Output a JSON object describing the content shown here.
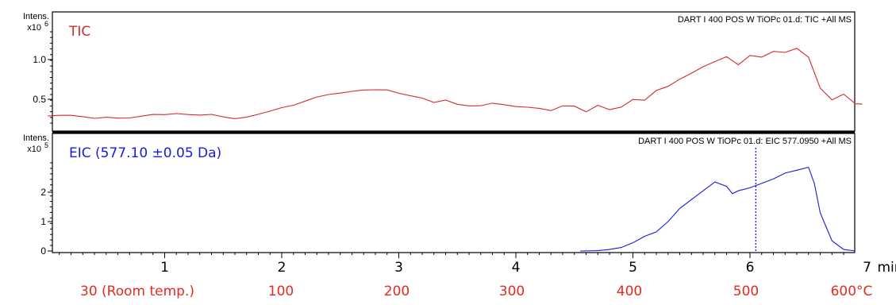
{
  "chart_data": [
    {
      "type": "line",
      "panel": "top",
      "label": "TIC",
      "header": "DART I 400 POS W TiOPc 01.d: TIC +All MS",
      "y_title": "Intens.",
      "y_unit": "x10",
      "y_exp": "6",
      "yticks": [
        0.5,
        1.0
      ],
      "ylim": [
        0.2,
        1.35
      ],
      "xlim": [
        0,
        6.96
      ],
      "color": "#d42a2a",
      "series": [
        {
          "color": "#d42a2a",
          "x": [
            0.0,
            0.1,
            0.2,
            0.3,
            0.4,
            0.5,
            0.6,
            0.7,
            0.8,
            0.9,
            1.0,
            1.1,
            1.2,
            1.3,
            1.4,
            1.5,
            1.6,
            1.7,
            1.8,
            1.9,
            2.0,
            2.1,
            2.2,
            2.3,
            2.4,
            2.5,
            2.6,
            2.7,
            2.8,
            2.9,
            3.0,
            3.1,
            3.2,
            3.3,
            3.4,
            3.5,
            3.6,
            3.7,
            3.8,
            3.9,
            4.0,
            4.1,
            4.2,
            4.3,
            4.4,
            4.5,
            4.6,
            4.7,
            4.8,
            4.9,
            5.0,
            5.1,
            5.2,
            5.3,
            5.4,
            5.5,
            5.6,
            5.7,
            5.8,
            5.9,
            6.0,
            6.1,
            6.2,
            6.3,
            6.4,
            6.5,
            6.6,
            6.7,
            6.8,
            6.9,
            6.96
          ],
          "y": [
            0.29,
            0.31,
            0.32,
            0.31,
            0.29,
            0.3,
            0.28,
            0.27,
            0.28,
            0.29,
            0.28,
            0.29,
            0.28,
            0.28,
            0.3,
            0.28,
            0.27,
            0.3,
            0.34,
            0.38,
            0.42,
            0.44,
            0.48,
            0.52,
            0.54,
            0.55,
            0.57,
            0.59,
            0.6,
            0.61,
            0.58,
            0.56,
            0.54,
            0.49,
            0.52,
            0.46,
            0.43,
            0.42,
            0.44,
            0.41,
            0.38,
            0.37,
            0.36,
            0.34,
            0.41,
            0.42,
            0.36,
            0.45,
            0.4,
            0.43,
            0.52,
            0.5,
            0.61,
            0.65,
            0.73,
            0.8,
            0.88,
            0.95,
            1.02,
            0.93,
            1.06,
            1.05,
            1.13,
            1.12,
            1.17,
            1.05,
            0.65,
            0.49,
            0.55,
            0.42,
            0.41
          ]
        }
      ]
    },
    {
      "type": "line",
      "panel": "bottom",
      "label": "EIC (577.10 ±0.05 Da)",
      "header": "DART I 400 POS W TiOPc 01.d: EIC 577.0950 +All MS",
      "y_title": "Intens.",
      "y_unit": "x10",
      "y_exp": "5",
      "yticks": [
        0,
        1,
        2
      ],
      "ylim": [
        0,
        3.0
      ],
      "xlim": [
        0,
        6.96
      ],
      "color": "#1a1adf",
      "marker_x": 6.05,
      "series": [
        {
          "color": "#1a1adf",
          "x": [
            4.55,
            4.7,
            4.8,
            4.9,
            5.0,
            5.1,
            5.2,
            5.3,
            5.4,
            5.5,
            5.6,
            5.7,
            5.8,
            5.85,
            5.9,
            6.0,
            6.1,
            6.2,
            6.3,
            6.4,
            6.5,
            6.55,
            6.6,
            6.7,
            6.8,
            6.9
          ],
          "y": [
            0.0,
            0.01,
            0.05,
            0.12,
            0.28,
            0.5,
            0.65,
            1.0,
            1.45,
            1.75,
            2.05,
            2.35,
            2.2,
            1.95,
            2.05,
            2.15,
            2.3,
            2.45,
            2.65,
            2.75,
            2.85,
            2.3,
            1.3,
            0.35,
            0.05,
            0.0
          ]
        }
      ]
    }
  ],
  "x_axis": {
    "ticks": [
      "1",
      "2",
      "3",
      "4",
      "5",
      "6",
      "7"
    ],
    "tick_values": [
      1,
      2,
      3,
      4,
      5,
      6,
      7
    ],
    "unit": "min"
  },
  "temperature_labels": [
    "30 (Room temp.)",
    "100",
    "200",
    "300",
    "400",
    "500",
    "600°C"
  ],
  "temperature_color": "#e32b22"
}
